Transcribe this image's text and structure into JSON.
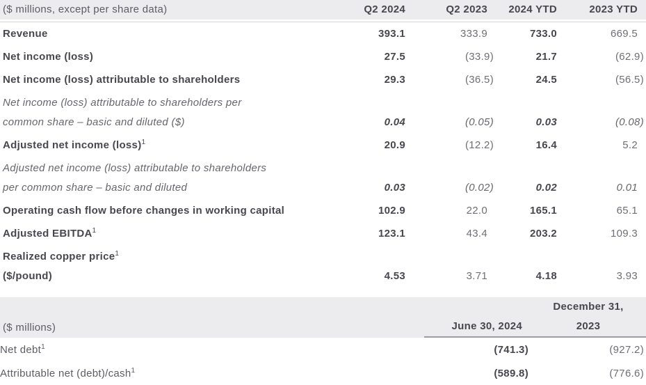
{
  "table1": {
    "header": {
      "label": "($ millions, except per share data)",
      "cols": [
        "Q2 2024",
        "Q2 2023",
        "2024 YTD",
        "2023 YTD"
      ]
    },
    "rows": [
      {
        "label": "Revenue",
        "values": [
          "393.1",
          "333.9",
          "733.0",
          "669.5"
        ]
      },
      {
        "label": "Net income (loss)",
        "values": [
          "27.5",
          "(33.9)",
          "21.7",
          "(62.9)"
        ]
      },
      {
        "label": "Net income (loss) attributable to shareholders",
        "values": [
          "29.3",
          "(36.5)",
          "24.5",
          "(56.5)"
        ]
      },
      {
        "label_line1": "Net income (loss) attributable to shareholders per",
        "label_line2": "common share – basic and diluted ($)",
        "values": [
          "0.04",
          "(0.05)",
          "0.03",
          "(0.08)"
        ]
      },
      {
        "label": "Adjusted net income (loss)",
        "sup": "1",
        "values": [
          "20.9",
          "(12.2)",
          "16.4",
          "5.2"
        ]
      },
      {
        "label_line1": "Adjusted net income (loss) attributable to shareholders",
        "label_line2": "per common share – basic and diluted",
        "values": [
          "0.03",
          "(0.02)",
          "0.02",
          "0.01"
        ]
      },
      {
        "label": "Operating cash flow before changes in working capital",
        "values": [
          "102.9",
          "22.0",
          "165.1",
          "65.1"
        ]
      },
      {
        "label": "Adjusted EBITDA",
        "sup": "1",
        "values": [
          "123.1",
          "43.4",
          "203.2",
          "109.3"
        ]
      },
      {
        "label_line1": "Realized copper price",
        "sup": "1",
        "label_line2": "($/pound)",
        "values": [
          "4.53",
          "3.71",
          "4.18",
          "3.93"
        ]
      }
    ]
  },
  "table2": {
    "header": {
      "label": "($ millions)",
      "col1": "June 30, 2024",
      "col2_line1": "December 31,",
      "col2_line2": "2023"
    },
    "rows": [
      {
        "label": "Net debt",
        "sup": "1",
        "values": [
          "(741.3)",
          "(927.2)"
        ]
      },
      {
        "label": "Attributable net (debt)/cash",
        "sup": "1",
        "values": [
          "(589.8)",
          "(776.6)"
        ]
      }
    ]
  },
  "colors": {
    "header_bg": "#ececee",
    "bold_text": "#47474f",
    "regular_text": "#6e6e76",
    "header_rule_light": "#d4d4d8",
    "header_rule_dark": "#9b9ca4"
  }
}
